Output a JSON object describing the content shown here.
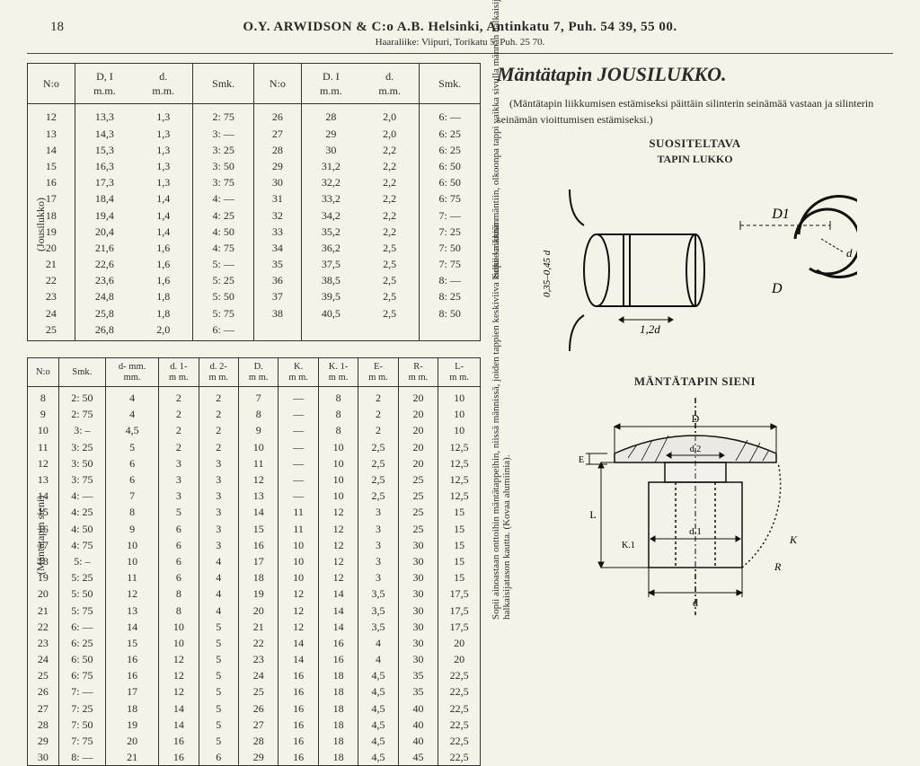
{
  "page_number": "18",
  "header": {
    "main": "O.Y. ARWIDSON & C:o A.B. Helsinki, Antinkatu 7, Puh. 54 39, 55 00.",
    "sub": "Haaraliike: Viipuri, Torikatu 5, Puh. 25 70."
  },
  "side_labels": {
    "left_top": "(Jousilukko)",
    "left_bottom": "(Mäntätapin sieni)",
    "right_top": "Sopii kaikkiin mäntiin, olkoonpa tappi vaikka sivulla männän halkaisijan tasosta.",
    "right_bottom": "Sopii ainoastaan onttoihin mäntätappeihin, niissä männissä, joiden tappien keskiviiva kulkee männän halkaisijatason kautta. (Kovaa alumiinia)."
  },
  "table1": {
    "headers": [
      "N:o",
      "D, I\nm.m.",
      "d.\nm.m.",
      "Smk.",
      "N:o",
      "D. I\nm.m.",
      "d.\nm.m.",
      "Smk."
    ],
    "rows": [
      [
        "12",
        "13,3",
        "1,3",
        "2: 75",
        "26",
        "28",
        "2,0",
        "6: —"
      ],
      [
        "13",
        "14,3",
        "1,3",
        "3: —",
        "27",
        "29",
        "2,0",
        "6: 25"
      ],
      [
        "14",
        "15,3",
        "1,3",
        "3: 25",
        "28",
        "30",
        "2,2",
        "6: 25"
      ],
      [
        "15",
        "16,3",
        "1,3",
        "3: 50",
        "29",
        "31,2",
        "2,2",
        "6: 50"
      ],
      [
        "16",
        "17,3",
        "1,3",
        "3: 75",
        "30",
        "32,2",
        "2,2",
        "6: 50"
      ],
      [
        "17",
        "18,4",
        "1,4",
        "4: —",
        "31",
        "33,2",
        "2,2",
        "6: 75"
      ],
      [
        "18",
        "19,4",
        "1,4",
        "4: 25",
        "32",
        "34,2",
        "2,2",
        "7: —"
      ],
      [
        "19",
        "20,4",
        "1,4",
        "4: 50",
        "33",
        "35,2",
        "2,2",
        "7: 25"
      ],
      [
        "20",
        "21,6",
        "1,6",
        "4: 75",
        "34",
        "36,2",
        "2,5",
        "7: 50"
      ],
      [
        "21",
        "22,6",
        "1,6",
        "5: —",
        "35",
        "37,5",
        "2,5",
        "7: 75"
      ],
      [
        "22",
        "23,6",
        "1,6",
        "5: 25",
        "36",
        "38,5",
        "2,5",
        "8: —"
      ],
      [
        "23",
        "24,8",
        "1,8",
        "5: 50",
        "37",
        "39,5",
        "2,5",
        "8: 25"
      ],
      [
        "24",
        "25,8",
        "1,8",
        "5: 75",
        "38",
        "40,5",
        "2,5",
        "8: 50"
      ],
      [
        "25",
        "26,8",
        "2,0",
        "6: —",
        "",
        "",
        "",
        ""
      ]
    ]
  },
  "table2": {
    "headers": [
      "N:o",
      "Smk.",
      "d- mm.\nmm.",
      "d. 1-\nm m.",
      "d. 2-\nm m.",
      "D.\nm m.",
      "K.\nm m.",
      "K. 1-\nm m.",
      "E-\nm m.",
      "R-\nm m.",
      "L-\nm m."
    ],
    "rows": [
      [
        "8",
        "2: 50",
        "4",
        "2",
        "2",
        "7",
        "—",
        "8",
        "2",
        "20",
        "10"
      ],
      [
        "9",
        "2: 75",
        "4",
        "2",
        "2",
        "8",
        "—",
        "8",
        "2",
        "20",
        "10"
      ],
      [
        "10",
        "3: –",
        "4,5",
        "2",
        "2",
        "9",
        "—",
        "8",
        "2",
        "20",
        "10"
      ],
      [
        "11",
        "3: 25",
        "5",
        "2",
        "2",
        "10",
        "—",
        "10",
        "2,5",
        "20",
        "12,5"
      ],
      [
        "12",
        "3: 50",
        "6",
        "3",
        "3",
        "11",
        "—",
        "10",
        "2,5",
        "20",
        "12,5"
      ],
      [
        "13",
        "3: 75",
        "6",
        "3",
        "3",
        "12",
        "—",
        "10",
        "2,5",
        "25",
        "12,5"
      ],
      [
        "14",
        "4: —",
        "7",
        "3",
        "3",
        "13",
        "—",
        "10",
        "2,5",
        "25",
        "12,5"
      ],
      [
        "15",
        "4: 25",
        "8",
        "5",
        "3",
        "14",
        "11",
        "12",
        "3",
        "25",
        "15"
      ],
      [
        "16",
        "4: 50",
        "9",
        "6",
        "3",
        "15",
        "11",
        "12",
        "3",
        "25",
        "15"
      ],
      [
        "17",
        "4: 75",
        "10",
        "6",
        "3",
        "16",
        "10",
        "12",
        "3",
        "30",
        "15"
      ],
      [
        "18",
        "5: –",
        "10",
        "6",
        "4",
        "17",
        "10",
        "12",
        "3",
        "30",
        "15"
      ],
      [
        "19",
        "5: 25",
        "11",
        "6",
        "4",
        "18",
        "10",
        "12",
        "3",
        "30",
        "15"
      ],
      [
        "20",
        "5: 50",
        "12",
        "8",
        "4",
        "19",
        "12",
        "14",
        "3,5",
        "30",
        "17,5"
      ],
      [
        "21",
        "5: 75",
        "13",
        "8",
        "4",
        "20",
        "12",
        "14",
        "3,5",
        "30",
        "17,5"
      ],
      [
        "22",
        "6: —",
        "14",
        "10",
        "5",
        "21",
        "12",
        "14",
        "3,5",
        "30",
        "17,5"
      ],
      [
        "23",
        "6: 25",
        "15",
        "10",
        "5",
        "22",
        "14",
        "16",
        "4",
        "30",
        "20"
      ],
      [
        "24",
        "6: 50",
        "16",
        "12",
        "5",
        "23",
        "14",
        "16",
        "4",
        "30",
        "20"
      ],
      [
        "25",
        "6: 75",
        "16",
        "12",
        "5",
        "24",
        "16",
        "18",
        "4,5",
        "35",
        "22,5"
      ],
      [
        "26",
        "7: —",
        "17",
        "12",
        "5",
        "25",
        "16",
        "18",
        "4,5",
        "35",
        "22,5"
      ],
      [
        "27",
        "7: 25",
        "18",
        "14",
        "5",
        "26",
        "16",
        "18",
        "4,5",
        "40",
        "22,5"
      ],
      [
        "28",
        "7: 50",
        "19",
        "14",
        "5",
        "27",
        "16",
        "18",
        "4,5",
        "40",
        "22,5"
      ],
      [
        "29",
        "7: 75",
        "20",
        "16",
        "5",
        "28",
        "16",
        "18",
        "4,5",
        "40",
        "22,5"
      ],
      [
        "30",
        "8: —",
        "21",
        "16",
        "6",
        "29",
        "16",
        "18",
        "4,5",
        "45",
        "22,5"
      ]
    ]
  },
  "right_title": "Mäntätapin JOUSILUKKO.",
  "right_desc": "(Mäntätapin liikkumisen estämiseksi päittäin silinterin seinämää vastaan ja silinterin seinämän vioittumisen estämiseksi.)",
  "diag1_title": "SUOSITELTAVA",
  "diag1_sub": "TAPIN LUKKO",
  "diag1_labels": {
    "d1": "D1",
    "d2": "d",
    "twod": "1,2d",
    "d": "D",
    "side": "0,35–0,45 d"
  },
  "diag2_title": "MÄNTÄTAPIN SIENI",
  "diag2_labels": {
    "D": "D",
    "d2": "d.2",
    "d1": "d.1",
    "d": "d",
    "L": "L",
    "K1": "K.1",
    "E": "E",
    "R": "R",
    "K": "K"
  }
}
